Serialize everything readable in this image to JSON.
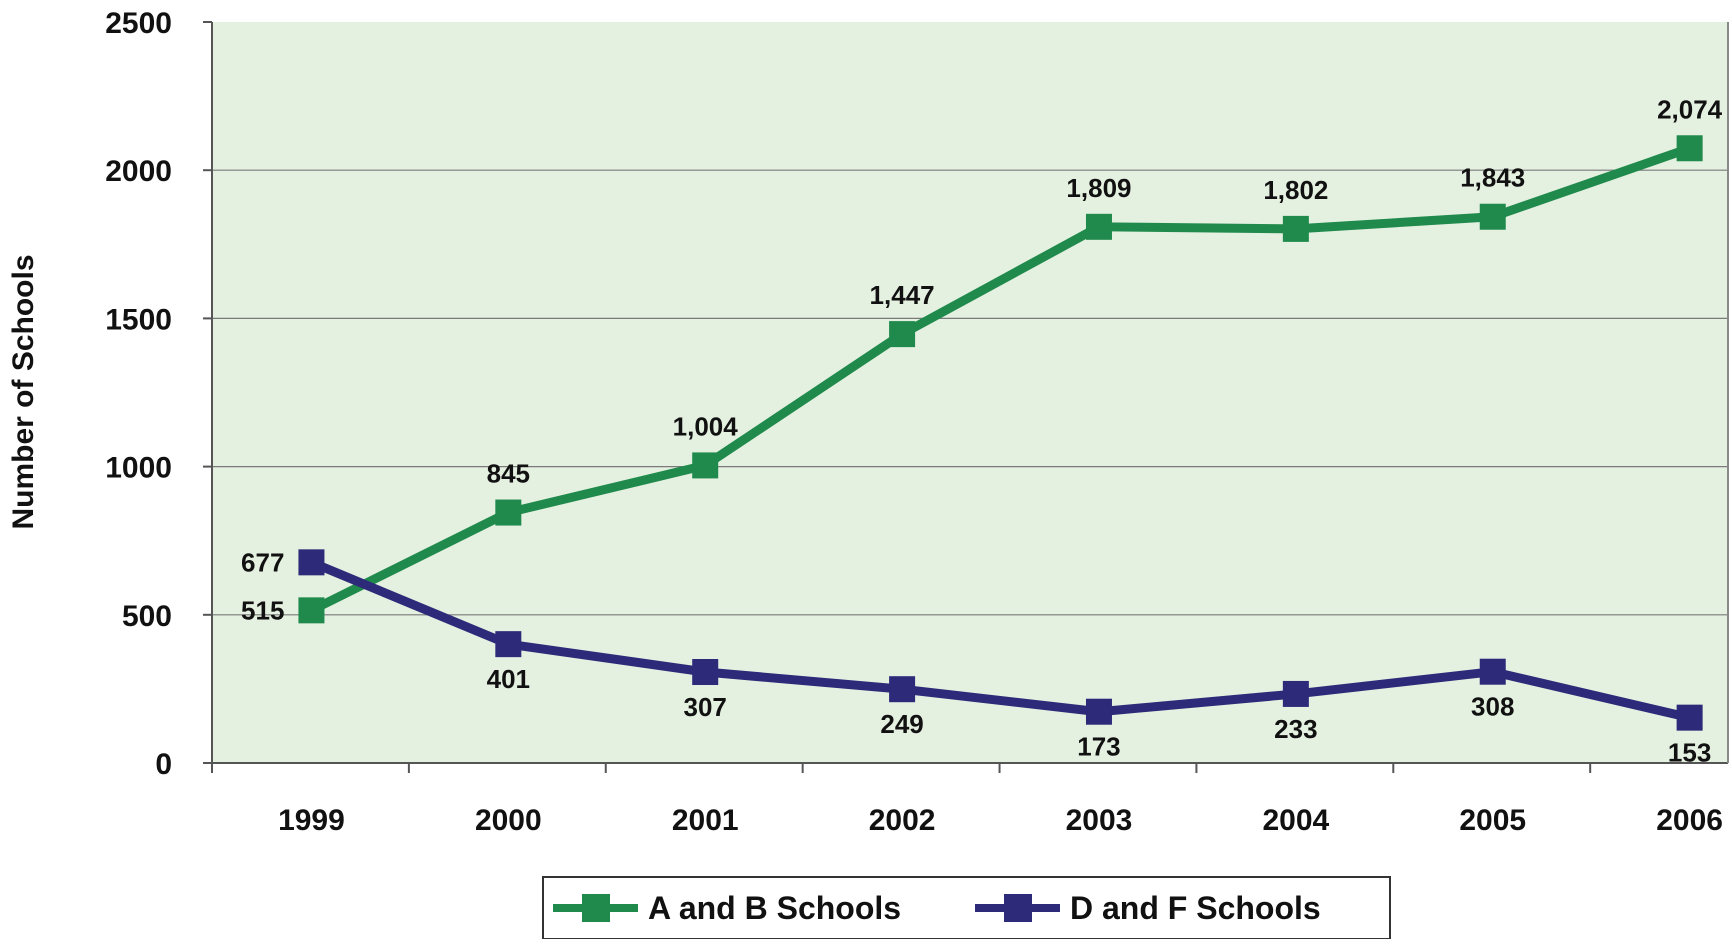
{
  "chart_data": {
    "type": "line",
    "title": "",
    "xlabel": "",
    "ylabel": "Number of Schools",
    "categories": [
      "1999",
      "2000",
      "2001",
      "2002",
      "2003",
      "2004",
      "2005",
      "2006"
    ],
    "ylim": [
      0,
      2500
    ],
    "yticks": [
      0,
      500,
      1000,
      1500,
      2000,
      2500
    ],
    "grid": true,
    "legend_position": "bottom",
    "plot_background": "#E4F0E0",
    "series": [
      {
        "name": "A and B Schools",
        "color": "#1F8A4C",
        "marker": "square",
        "values": [
          515,
          845,
          1004,
          1447,
          1809,
          1802,
          1843,
          2074
        ],
        "labels": [
          "515",
          "845",
          "1,004",
          "1,447",
          "1,809",
          "1,802",
          "1,843",
          "2,074"
        ]
      },
      {
        "name": "D and F Schools",
        "color": "#2E2A7A",
        "marker": "square",
        "values": [
          677,
          401,
          307,
          249,
          173,
          233,
          308,
          153
        ],
        "labels": [
          "677",
          "401",
          "307",
          "249",
          "173",
          "233",
          "308",
          "153"
        ]
      }
    ]
  }
}
